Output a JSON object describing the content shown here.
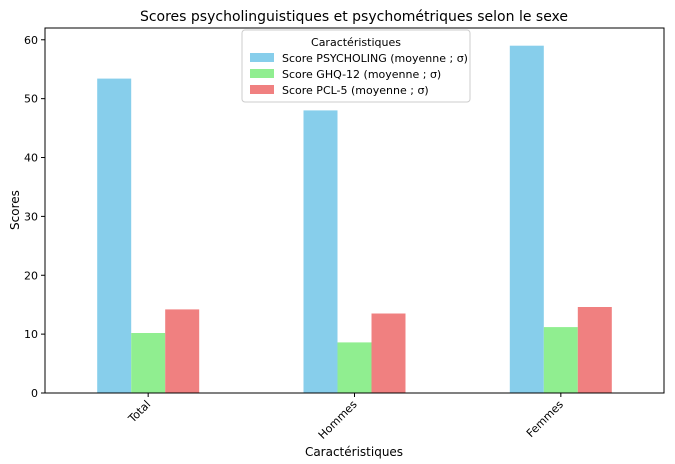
{
  "chart_data": {
    "type": "bar",
    "title": "Scores psycholinguistiques et psychométriques selon le sexe",
    "xlabel": "Caractéristiques",
    "ylabel": "Scores",
    "categories": [
      "Total",
      "Hommes",
      "Femmes"
    ],
    "ylim": [
      0,
      62
    ],
    "yticks": [
      0,
      10,
      20,
      30,
      40,
      50,
      60
    ],
    "grid": false,
    "legend": {
      "title": "Caractéristiques",
      "placement": "top-center"
    },
    "series": [
      {
        "name": "Score PSYCHOLING (moyenne ; σ)",
        "color": "#87ceeb",
        "values": [
          53.4,
          48.0,
          59.0
        ]
      },
      {
        "name": "Score GHQ-12 (moyenne ; σ)",
        "color": "#90ee90",
        "values": [
          10.2,
          8.6,
          11.2
        ]
      },
      {
        "name": "Score PCL-5 (moyenne ; σ)",
        "color": "#f08080",
        "values": [
          14.2,
          13.5,
          14.6
        ]
      }
    ]
  }
}
